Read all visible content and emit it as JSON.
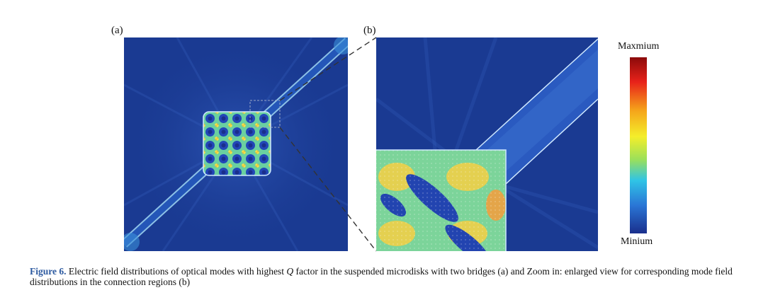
{
  "figure": {
    "panel_a_label": "(a)",
    "panel_b_label": "(b)",
    "colorbar": {
      "max_label": "Maxmium",
      "min_label": "Minium",
      "colors": [
        "#8b0a0a",
        "#e8221a",
        "#f5a31a",
        "#f4ee2a",
        "#9be05a",
        "#2fc4e6",
        "#2a76d6",
        "#1a2f8c"
      ]
    },
    "caption": {
      "figure_number": "Figure 6.",
      "text_before_q": "Electric field distributions of optical modes with highest",
      "q_symbol": "Q",
      "text_after_q": "factor in the suspended microdisks with two bridges (a) and Zoom in: enlarged view for corresponding mode field distributions in the connection regions (b)"
    },
    "colors": {
      "background_field": "#1a3a92",
      "caption_accent": "#2d5aa0"
    }
  }
}
